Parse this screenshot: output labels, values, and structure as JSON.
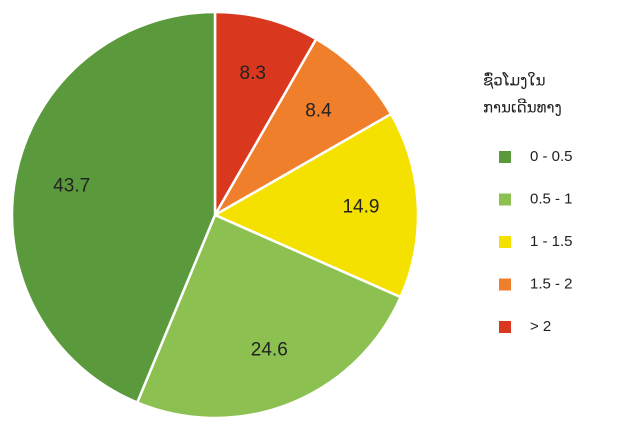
{
  "chart_data": {
    "type": "pie",
    "legend_title": [
      "ຊົ່ວໂມງໃນ",
      "ການເດີນທາງ"
    ],
    "categories": [
      "0 - 0.5",
      "0.5 - 1",
      "1 - 1.5",
      "1.5 - 2",
      "> 2"
    ],
    "values": [
      43.7,
      24.6,
      14.9,
      8.4,
      8.3
    ],
    "colors": [
      "#5b9a3c",
      "#8cc152",
      "#f5e100",
      "#f07f2c",
      "#d9381e"
    ],
    "legend": "right"
  }
}
